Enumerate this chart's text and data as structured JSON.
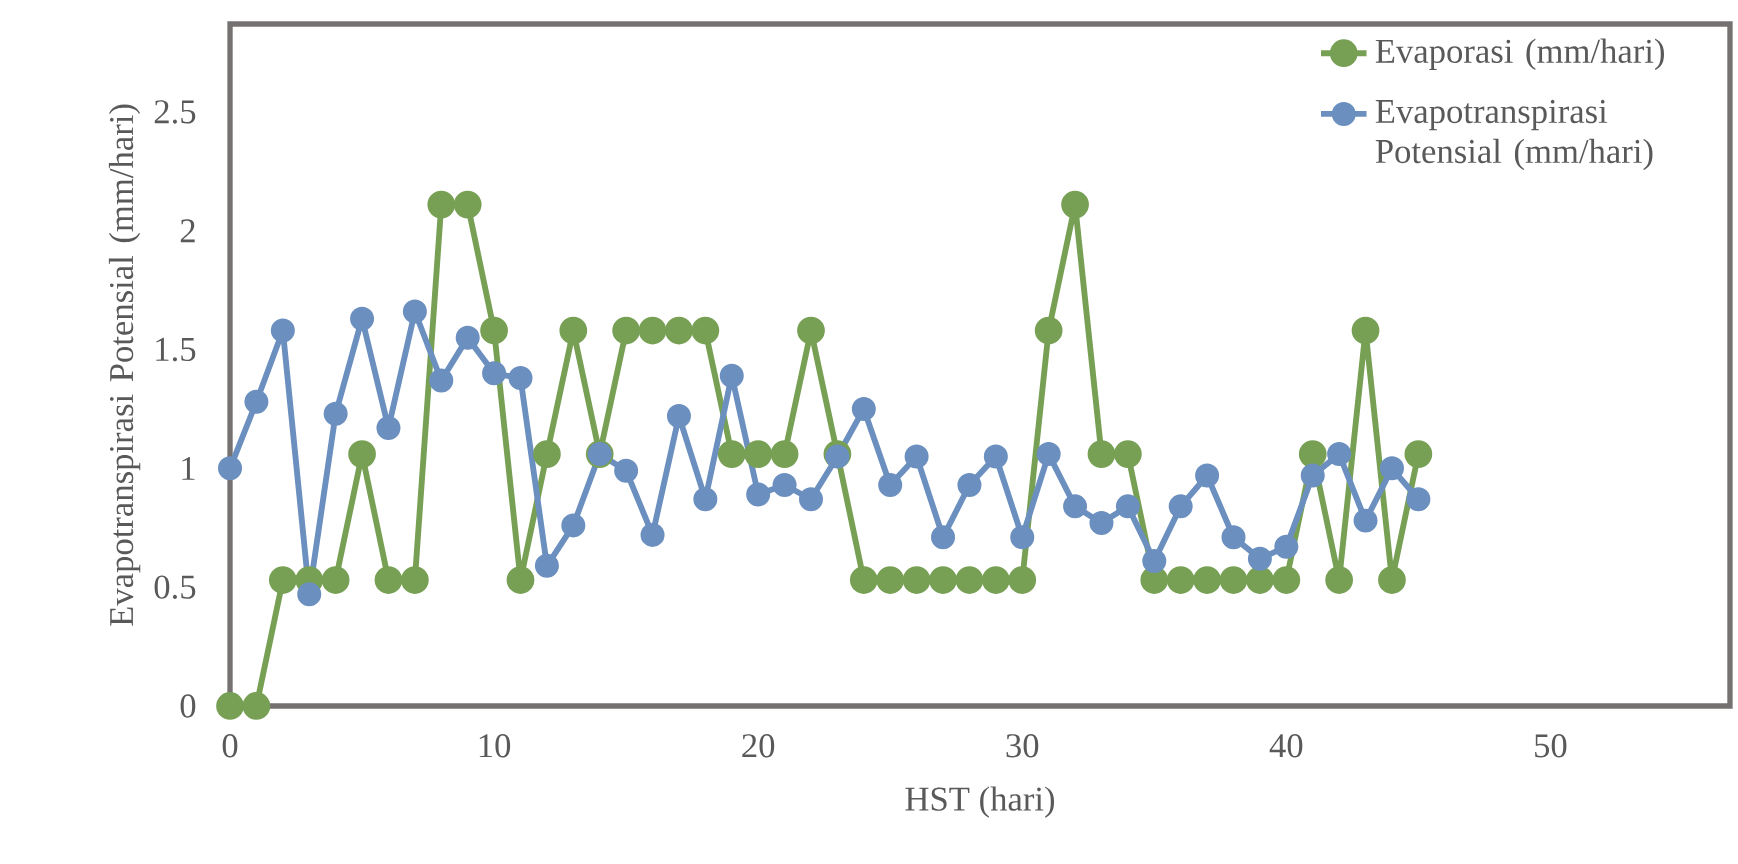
{
  "chart_data": {
    "type": "line",
    "xlabel": "HST (hari)",
    "ylabel": "Evapotranspirasi Potensial (mm/hari)",
    "xlim": [
      0,
      56.8
    ],
    "ylim": [
      0,
      2.87
    ],
    "xticks": [
      0,
      10,
      20,
      30,
      40,
      50
    ],
    "yticks": [
      0,
      0.5,
      1,
      1.5,
      2,
      2.5
    ],
    "x": [
      0,
      1,
      2,
      3,
      4,
      5,
      6,
      7,
      8,
      9,
      10,
      11,
      12,
      13,
      14,
      15,
      16,
      17,
      18,
      19,
      20,
      21,
      22,
      23,
      24,
      25,
      26,
      27,
      28,
      29,
      30,
      31,
      32,
      33,
      34,
      35,
      36,
      37,
      38,
      39,
      40,
      41,
      42,
      43,
      44,
      45
    ],
    "series": [
      {
        "name": "Evaporasi (mm/hari)",
        "color": "#77a055",
        "values": [
          0,
          0,
          0.53,
          0.53,
          0.53,
          1.06,
          0.53,
          0.53,
          2.11,
          2.11,
          1.58,
          0.53,
          1.06,
          1.58,
          1.06,
          1.58,
          1.58,
          1.58,
          1.58,
          1.06,
          1.06,
          1.06,
          1.58,
          1.06,
          0.53,
          0.53,
          0.53,
          0.53,
          0.53,
          0.53,
          0.53,
          1.58,
          2.11,
          1.06,
          1.06,
          0.53,
          0.53,
          0.53,
          0.53,
          0.53,
          0.53,
          1.06,
          0.53,
          1.58,
          0.53,
          1.06
        ]
      },
      {
        "name": "Evapotranspirasi Potensial (mm/hari)",
        "color": "#6b8fbf",
        "values": [
          1.0,
          1.28,
          1.58,
          0.47,
          1.23,
          1.63,
          1.17,
          1.66,
          1.37,
          1.55,
          1.4,
          1.38,
          0.59,
          0.76,
          1.06,
          0.99,
          0.72,
          1.22,
          0.87,
          1.39,
          0.89,
          0.93,
          0.87,
          1.05,
          1.25,
          0.93,
          1.05,
          0.71,
          0.93,
          1.05,
          0.71,
          1.06,
          0.84,
          0.77,
          0.84,
          0.61,
          0.84,
          0.97,
          0.71,
          0.62,
          0.67,
          0.97,
          1.06,
          0.78,
          1.0,
          0.87
        ]
      }
    ],
    "legend": "top right",
    "marker": "circle",
    "line_style": "solid",
    "grid": false
  }
}
